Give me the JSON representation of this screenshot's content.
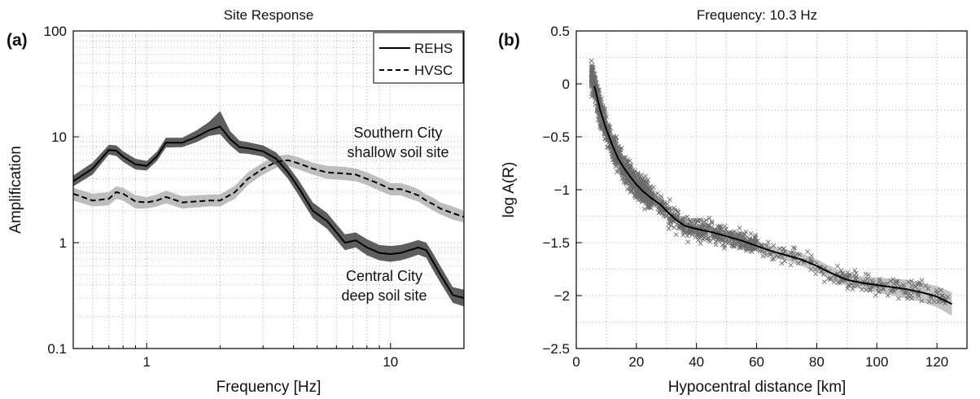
{
  "chart_data": [
    {
      "type": "line",
      "panel_label": "(a)",
      "title": "Site Response",
      "xlabel": "Frequency [Hz]",
      "ylabel": "Amplification",
      "xscale": "log",
      "yscale": "log",
      "xlim": [
        0.5,
        20
      ],
      "ylim": [
        0.1,
        100
      ],
      "x_tick_labels": [
        "1",
        "10"
      ],
      "y_tick_labels": [
        "0.1",
        "1",
        "10",
        "100"
      ],
      "grid": true,
      "legend_position": "top-right",
      "legend": [
        "REHS",
        "HVSC"
      ],
      "annotations": [
        {
          "lines": [
            "Southern City",
            "shallow soil site"
          ],
          "x": 9.5,
          "y": 6.2
        },
        {
          "lines": [
            "Central City",
            "deep soil site"
          ],
          "x": 7.0,
          "y": 0.48
        }
      ],
      "series": [
        {
          "name": "REHS",
          "style": "solid",
          "band_color": "#555555",
          "x": [
            0.5,
            0.6,
            0.7,
            0.75,
            0.8,
            0.9,
            1.0,
            1.1,
            1.2,
            1.4,
            1.6,
            1.8,
            2.0,
            2.2,
            2.4,
            2.6,
            3.0,
            3.4,
            3.8,
            4.2,
            4.8,
            5.5,
            6.5,
            7.2,
            8.0,
            9.0,
            10.0,
            11.0,
            12.0,
            13.0,
            14.0,
            15.0,
            16.0,
            18.0,
            20.0
          ],
          "values": [
            3.8,
            5.0,
            7.5,
            7.4,
            6.5,
            5.5,
            5.3,
            6.5,
            8.8,
            8.8,
            10.0,
            11.5,
            12.5,
            9.5,
            8.0,
            7.8,
            7.3,
            6.2,
            4.6,
            3.3,
            2.0,
            1.6,
            1.0,
            1.05,
            0.9,
            0.8,
            0.78,
            0.8,
            0.85,
            0.9,
            0.85,
            0.65,
            0.5,
            0.32,
            0.3
          ],
          "lower": [
            3.4,
            4.4,
            6.8,
            6.6,
            5.8,
            4.9,
            4.8,
            5.9,
            7.9,
            8.0,
            8.9,
            10.2,
            10.6,
            8.3,
            7.0,
            6.9,
            6.5,
            5.4,
            4.0,
            2.8,
            1.7,
            1.35,
            0.85,
            0.9,
            0.76,
            0.68,
            0.66,
            0.68,
            0.72,
            0.77,
            0.72,
            0.54,
            0.42,
            0.27,
            0.25
          ],
          "upper": [
            4.3,
            5.7,
            8.4,
            8.3,
            7.3,
            6.2,
            5.9,
            7.2,
            9.8,
            9.8,
            11.5,
            13.8,
            17.5,
            11.3,
            9.2,
            8.9,
            8.3,
            7.1,
            5.3,
            3.9,
            2.4,
            1.9,
            1.2,
            1.25,
            1.08,
            0.95,
            0.93,
            0.95,
            1.0,
            1.06,
            1.0,
            0.78,
            0.6,
            0.38,
            0.36
          ]
        },
        {
          "name": "HVSC",
          "style": "dashed",
          "band_color": "#bdbdbd",
          "x": [
            0.5,
            0.6,
            0.7,
            0.75,
            0.8,
            0.9,
            1.0,
            1.1,
            1.2,
            1.4,
            1.6,
            1.8,
            2.0,
            2.3,
            2.6,
            3.0,
            3.4,
            3.8,
            4.2,
            4.8,
            5.5,
            6.5,
            7.2,
            8.0,
            9.0,
            10.0,
            11.0,
            12.0,
            13.0,
            14.0,
            15.0,
            16.0,
            18.0,
            20.0
          ],
          "values": [
            2.9,
            2.5,
            2.6,
            3.0,
            2.9,
            2.45,
            2.4,
            2.5,
            2.7,
            2.4,
            2.45,
            2.5,
            2.5,
            3.0,
            4.0,
            5.0,
            5.8,
            6.0,
            5.6,
            5.0,
            4.6,
            4.5,
            4.4,
            4.0,
            3.6,
            3.2,
            3.2,
            3.0,
            2.8,
            2.5,
            2.3,
            2.1,
            1.9,
            1.75
          ],
          "lower": [
            2.5,
            2.2,
            2.25,
            2.6,
            2.5,
            2.1,
            2.1,
            2.2,
            2.35,
            2.1,
            2.15,
            2.2,
            2.2,
            2.6,
            3.5,
            4.4,
            5.1,
            5.3,
            4.9,
            4.4,
            4.0,
            3.9,
            3.8,
            3.5,
            3.1,
            2.8,
            2.8,
            2.6,
            2.45,
            2.2,
            2.0,
            1.85,
            1.65,
            1.55
          ],
          "upper": [
            3.3,
            2.9,
            3.0,
            3.4,
            3.3,
            2.8,
            2.7,
            2.85,
            3.1,
            2.75,
            2.8,
            2.85,
            2.85,
            3.45,
            4.6,
            5.7,
            6.6,
            6.8,
            6.4,
            5.7,
            5.3,
            5.2,
            5.0,
            4.6,
            4.1,
            3.65,
            3.65,
            3.45,
            3.2,
            2.85,
            2.65,
            2.4,
            2.2,
            2.0
          ]
        }
      ]
    },
    {
      "type": "scatter",
      "panel_label": "(b)",
      "title": "Frequency: 10.3 Hz",
      "xlabel": "Hypocentral distance [km]",
      "ylabel": "log A(R)",
      "xlim": [
        0,
        130
      ],
      "ylim": [
        -2.5,
        0.5
      ],
      "x_tick_labels": [
        "0",
        "20",
        "40",
        "60",
        "80",
        "100",
        "120"
      ],
      "y_tick_labels": [
        "0.5",
        "0",
        "−0.5",
        "−1",
        "−1.5",
        "−2",
        "−2.5"
      ],
      "grid": true,
      "marker": "x",
      "marker_color": "#666666",
      "fit_curve": {
        "x": [
          6,
          8,
          10,
          12,
          14,
          16,
          18,
          20,
          22,
          25,
          28,
          30,
          33,
          36,
          40,
          45,
          50,
          55,
          60,
          65,
          70,
          75,
          80,
          85,
          90,
          95,
          100,
          105,
          110,
          115,
          120,
          125
        ],
        "values": [
          -0.02,
          -0.25,
          -0.43,
          -0.58,
          -0.71,
          -0.8,
          -0.88,
          -0.95,
          -1.01,
          -1.08,
          -1.14,
          -1.2,
          -1.28,
          -1.34,
          -1.37,
          -1.4,
          -1.44,
          -1.48,
          -1.53,
          -1.58,
          -1.62,
          -1.66,
          -1.72,
          -1.79,
          -1.85,
          -1.88,
          -1.9,
          -1.92,
          -1.94,
          -1.97,
          -2.01,
          -2.08
        ]
      },
      "band": {
        "lower": [
          -0.08,
          -0.3,
          -0.48,
          -0.62,
          -0.75,
          -0.84,
          -0.92,
          -0.99,
          -1.05,
          -1.12,
          -1.18,
          -1.24,
          -1.32,
          -1.38,
          -1.42,
          -1.45,
          -1.49,
          -1.53,
          -1.58,
          -1.63,
          -1.67,
          -1.72,
          -1.78,
          -1.85,
          -1.91,
          -1.94,
          -1.97,
          -2.0,
          -2.03,
          -2.06,
          -2.11,
          -2.19
        ],
        "upper": [
          0.04,
          -0.2,
          -0.38,
          -0.54,
          -0.67,
          -0.76,
          -0.84,
          -0.91,
          -0.97,
          -1.04,
          -1.1,
          -1.16,
          -1.24,
          -1.3,
          -1.32,
          -1.35,
          -1.39,
          -1.43,
          -1.48,
          -1.53,
          -1.57,
          -1.6,
          -1.66,
          -1.73,
          -1.79,
          -1.82,
          -1.83,
          -1.84,
          -1.85,
          -1.88,
          -1.91,
          -1.97
        ]
      }
    }
  ]
}
